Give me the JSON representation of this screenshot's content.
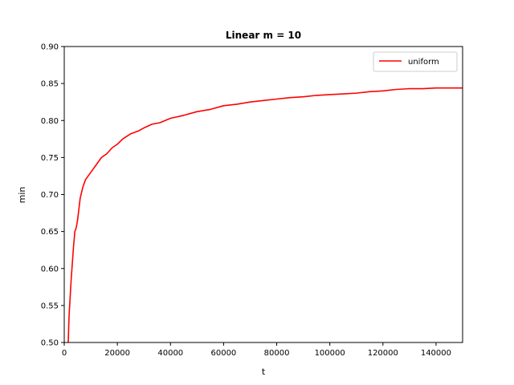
{
  "chart_data": {
    "type": "line",
    "title": "Linear m = 10",
    "xlabel": "t",
    "ylabel": "min",
    "xlim": [
      0,
      150000
    ],
    "ylim": [
      0.5,
      0.9
    ],
    "x_ticks": [
      0,
      20000,
      40000,
      60000,
      80000,
      100000,
      120000,
      140000
    ],
    "x_tick_labels": [
      "0",
      "20000",
      "40000",
      "60000",
      "80000",
      "100000",
      "120000",
      "140000"
    ],
    "y_ticks": [
      0.5,
      0.55,
      0.6,
      0.65,
      0.7,
      0.75,
      0.8,
      0.85,
      0.9
    ],
    "y_tick_labels": [
      "0.50",
      "0.55",
      "0.60",
      "0.65",
      "0.70",
      "0.75",
      "0.80",
      "0.85",
      "0.90"
    ],
    "grid": false,
    "legend_position": "top-right",
    "series": [
      {
        "name": "uniform",
        "color": "#ff0000",
        "x": [
          1500,
          1800,
          2200,
          2600,
          3000,
          3500,
          4000,
          4500,
          5000,
          6000,
          7000,
          8000,
          9000,
          10000,
          12000,
          14000,
          16000,
          18000,
          20000,
          22000,
          25000,
          28000,
          30000,
          33000,
          36000,
          40000,
          45000,
          50000,
          55000,
          60000,
          65000,
          70000,
          75000,
          80000,
          85000,
          90000,
          95000,
          100000,
          105000,
          110000,
          115000,
          120000,
          125000,
          130000,
          135000,
          140000,
          145000,
          150000
        ],
        "y": [
          0.5,
          0.535,
          0.56,
          0.585,
          0.605,
          0.63,
          0.65,
          0.655,
          0.665,
          0.695,
          0.71,
          0.72,
          0.725,
          0.73,
          0.74,
          0.75,
          0.755,
          0.763,
          0.768,
          0.775,
          0.782,
          0.786,
          0.79,
          0.795,
          0.797,
          0.803,
          0.807,
          0.812,
          0.815,
          0.82,
          0.822,
          0.825,
          0.827,
          0.829,
          0.831,
          0.832,
          0.834,
          0.835,
          0.836,
          0.837,
          0.839,
          0.84,
          0.842,
          0.843,
          0.843,
          0.844,
          0.844,
          0.844
        ]
      }
    ]
  }
}
